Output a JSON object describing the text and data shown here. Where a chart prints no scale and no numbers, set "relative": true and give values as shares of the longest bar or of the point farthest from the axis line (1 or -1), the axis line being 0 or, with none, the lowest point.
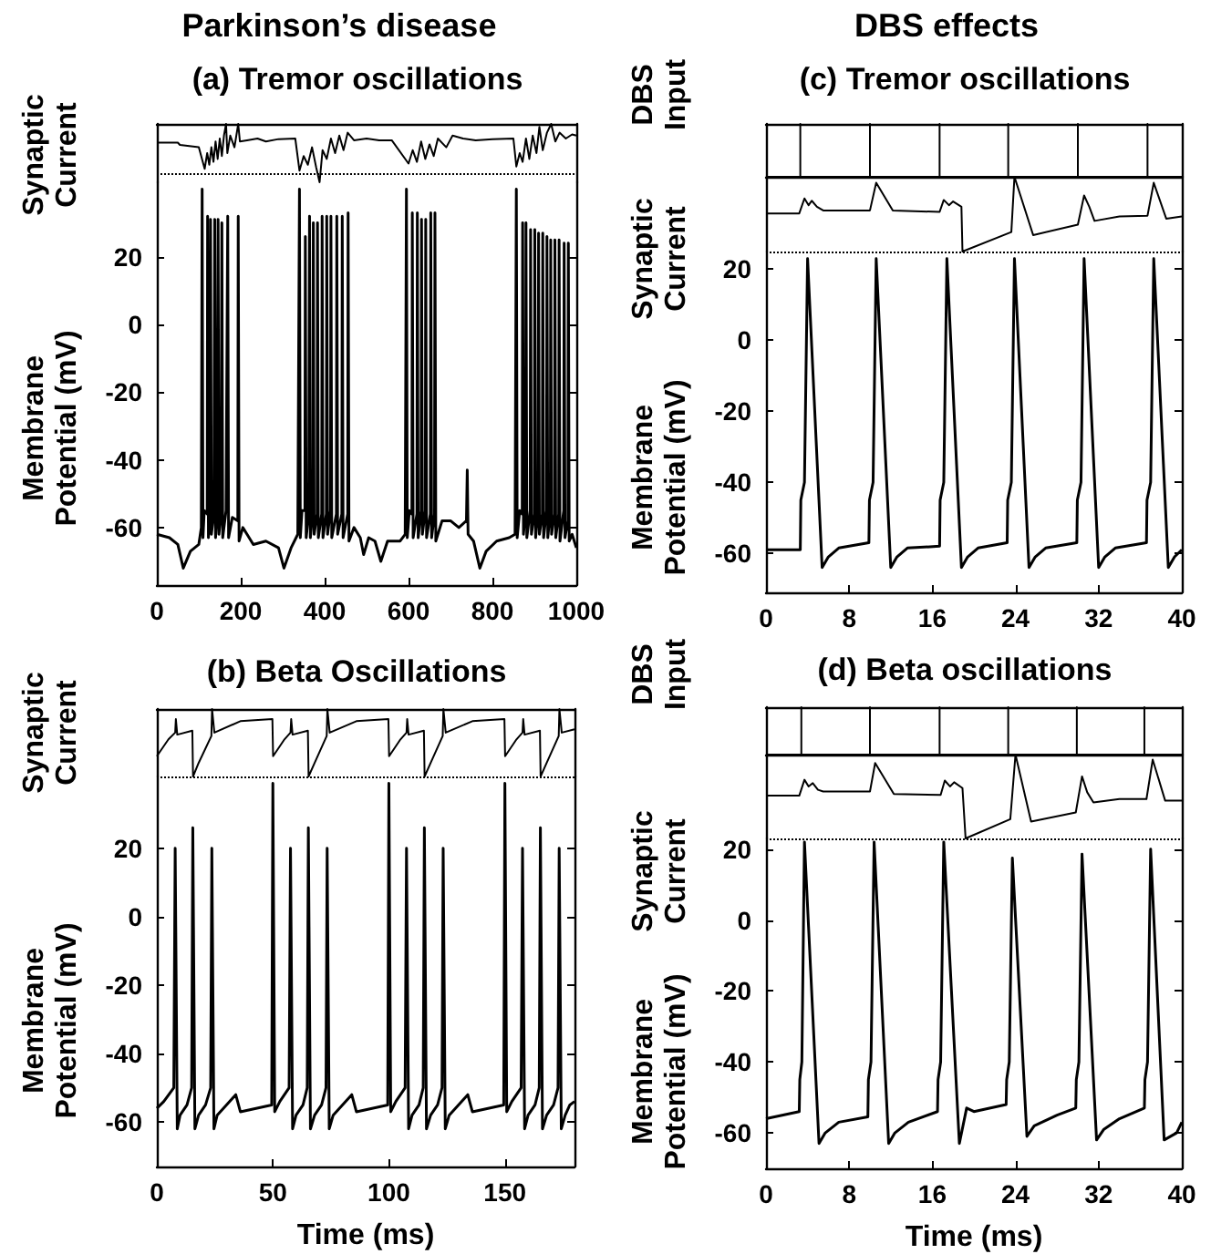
{
  "chart_data": [
    {
      "type": "line",
      "title": "Parkinson’s disease",
      "subtitle": "(a) Tremor oscillations",
      "ylabel": "Synaptic Current",
      "relative": true,
      "tick_labels": false,
      "xlim": [
        0,
        1000
      ],
      "color": "#000000",
      "ref_lines": [
        {
          "axis": "y",
          "value": 0.14,
          "line_style": "dotted",
          "color": "#000000"
        }
      ],
      "x": [
        0,
        50,
        55,
        100,
        114,
        120,
        125,
        130,
        135,
        140,
        145,
        150,
        155,
        160,
        165,
        168,
        175,
        185,
        194,
        198,
        215,
        240,
        260,
        290,
        330,
        340,
        350,
        360,
        370,
        380,
        388,
        395,
        405,
        415,
        425,
        435,
        445,
        455,
        470,
        500,
        530,
        560,
        600,
        610,
        620,
        630,
        640,
        650,
        660,
        670,
        690,
        705,
        730,
        760,
        800,
        850,
        857,
        865,
        872,
        880,
        888,
        896,
        905,
        912,
        920,
        930,
        940,
        950,
        960,
        975,
        990,
        1000
      ],
      "values": [
        0.68,
        0.68,
        0.64,
        0.6,
        0.23,
        0.5,
        0.3,
        0.6,
        0.35,
        0.7,
        0.4,
        0.75,
        0.45,
        0.8,
        1.0,
        0.5,
        0.8,
        0.6,
        1.0,
        0.7,
        0.72,
        0.75,
        0.7,
        0.74,
        0.75,
        0.2,
        0.45,
        0.3,
        0.6,
        0.25,
        0,
        0.55,
        0.4,
        0.75,
        0.5,
        0.8,
        0.55,
        0.85,
        0.72,
        0.75,
        0.72,
        0.72,
        0.32,
        0.55,
        0.35,
        0.7,
        0.4,
        0.65,
        0.45,
        0.75,
        0.6,
        0.8,
        0.75,
        0.72,
        0.74,
        0.75,
        0.27,
        0.5,
        0.35,
        0.75,
        0.4,
        0.8,
        0.5,
        0.95,
        0.55,
        0.85,
        1.0,
        0.7,
        0.85,
        0.75,
        0.82,
        0.8
      ]
    },
    {
      "type": "line",
      "ylabel": "Membrane Potential (mV)",
      "xlim": [
        0,
        1000
      ],
      "xticks": [
        0,
        200,
        400,
        600,
        800,
        1000
      ],
      "ylim": [
        -77,
        42
      ],
      "yticks": [
        -60,
        -40,
        -20,
        0,
        20
      ],
      "color": "#000000",
      "x": [
        0,
        30,
        50,
        63,
        80,
        100,
        106,
        108,
        110,
        113,
        120,
        121,
        123,
        126,
        128,
        130,
        136,
        138,
        140,
        144,
        146,
        148,
        153,
        155,
        157,
        165,
        169,
        171,
        180,
        193,
        194,
        196,
        205,
        215,
        230,
        260,
        290,
        303,
        320,
        336,
        340,
        342,
        346,
        353,
        354,
        356,
        362,
        364,
        366,
        372,
        373,
        375,
        382,
        383,
        385,
        393,
        394,
        396,
        404,
        405,
        407,
        414,
        415,
        417,
        428,
        429,
        431,
        441,
        442,
        444,
        455,
        456,
        458,
        470,
        485,
        493,
        505,
        520,
        534,
        550,
        580,
        592,
        595,
        597,
        602,
        608,
        609,
        611,
        620,
        621,
        623,
        630,
        631,
        633,
        640,
        641,
        643,
        652,
        653,
        655,
        662,
        663,
        665,
        680,
        700,
        720,
        738,
        740,
        742,
        755,
        770,
        785,
        810,
        840,
        854,
        857,
        859,
        865,
        871,
        872,
        874,
        879,
        880,
        882,
        890,
        891,
        893,
        900,
        901,
        903,
        909,
        910,
        912,
        919,
        920,
        922,
        929,
        930,
        932,
        938,
        939,
        941,
        948,
        949,
        951,
        958,
        959,
        961,
        970,
        971,
        973,
        980,
        981,
        983,
        990,
        1000
      ],
      "values": [
        -62,
        -63,
        -65,
        -72,
        -67,
        -65,
        -60,
        40,
        -63,
        -55,
        -56,
        32,
        -63,
        -56,
        31,
        -62,
        -56,
        31,
        -63,
        -55,
        31,
        -62,
        -56,
        30,
        -63,
        -55,
        32,
        -63,
        -57,
        -58,
        32,
        -64,
        -60,
        -62,
        -65,
        -64,
        -66,
        -72,
        -66,
        -62,
        40,
        -63,
        -55,
        -55,
        26,
        -63,
        -56,
        32,
        -63,
        -55,
        30,
        -62,
        -56,
        30,
        -63,
        -56,
        32,
        -63,
        -56,
        32,
        -62,
        -55,
        32,
        -63,
        -56,
        32,
        -62,
        -56,
        32,
        -63,
        -56,
        33,
        -64,
        -60,
        -63,
        -68,
        -63,
        -64,
        -70,
        -64,
        -64,
        -62,
        40,
        -63,
        -55,
        -56,
        33,
        -63,
        -56,
        33,
        -63,
        -55,
        31,
        -62,
        -55,
        31,
        -63,
        -56,
        33,
        -63,
        -56,
        33,
        -64,
        -58,
        -58,
        -60,
        -58,
        -43,
        -62,
        -64,
        -72,
        -67,
        -64,
        -63,
        -62,
        40,
        -63,
        -55,
        -56,
        30,
        -62,
        -55,
        30,
        -63,
        -55,
        28,
        -62,
        -56,
        28,
        -63,
        -55,
        27,
        -62,
        -56,
        27,
        -63,
        -55,
        26,
        -63,
        -55,
        25,
        -62,
        -56,
        25,
        -63,
        -56,
        25,
        -64,
        -55,
        24,
        -63,
        -58,
        24,
        -64,
        -62,
        -66
      ]
    },
    {
      "type": "line",
      "title": "(b) Beta Oscillations",
      "ylabel": "Synaptic Current",
      "relative": true,
      "tick_labels": false,
      "xlim": [
        0,
        180
      ],
      "color": "#000000",
      "ref_lines": [
        {
          "axis": "y",
          "value": 0,
          "line_style": "dotted",
          "color": "#000000"
        }
      ],
      "x": [
        0,
        5,
        7.9,
        8.2,
        8.8,
        15.3,
        15.6,
        18,
        23.5,
        23.8,
        24.8,
        36,
        49.8,
        50.1,
        55,
        57.6,
        57.9,
        58.5,
        65.1,
        65.4,
        68,
        73.2,
        73.5,
        74.5,
        86,
        99.8,
        100.1,
        105,
        107.6,
        107.9,
        108.5,
        115.1,
        115.4,
        118,
        123.2,
        123.5,
        124.5,
        136,
        149.8,
        150.1,
        155,
        157.6,
        157.9,
        158.5,
        165.1,
        165.4,
        168,
        173.2,
        173.5,
        174.5,
        180
      ],
      "values": [
        0.3,
        0.55,
        0.65,
        0.85,
        0.62,
        0.68,
        0,
        0.2,
        0.6,
        1,
        0.65,
        0.82,
        0.85,
        0.3,
        0.55,
        0.65,
        0.85,
        0.62,
        0.68,
        0,
        0.2,
        0.6,
        1,
        0.65,
        0.82,
        0.85,
        0.3,
        0.55,
        0.65,
        0.85,
        0.62,
        0.68,
        0,
        0.2,
        0.6,
        1,
        0.65,
        0.82,
        0.85,
        0.3,
        0.55,
        0.65,
        0.85,
        0.62,
        0.68,
        0,
        0.2,
        0.6,
        1,
        0.65,
        0.7
      ]
    },
    {
      "type": "line",
      "xlabel": "Time (ms)",
      "ylabel": "Membrane Potential (mV)",
      "xlim": [
        0,
        180
      ],
      "xticks": [
        0,
        50,
        100,
        150
      ],
      "ylim": [
        -73,
        41
      ],
      "yticks": [
        -60,
        -40,
        -20,
        0,
        20
      ],
      "color": "#000000",
      "x": [
        0,
        3,
        7.3,
        7.9,
        8.8,
        10,
        13,
        15,
        15.5,
        16.4,
        18,
        21,
        23.2,
        23.7,
        24.6,
        26,
        30,
        34,
        36,
        49.5,
        50,
        50.8,
        53,
        57,
        57.6,
        58.5,
        60,
        63,
        64.8,
        65.3,
        66.2,
        68,
        71,
        72.9,
        73.4,
        74.3,
        76,
        80,
        84,
        86,
        99.5,
        100,
        100.8,
        103,
        107,
        107.6,
        108.5,
        110,
        113,
        114.8,
        115.3,
        116.2,
        118,
        121,
        122.9,
        123.4,
        124.3,
        126,
        130,
        134,
        136,
        149.5,
        150,
        150.8,
        153,
        157,
        157.6,
        158.5,
        160,
        163,
        164.8,
        165.3,
        166.2,
        168,
        171,
        172.9,
        173.4,
        174.3,
        176,
        178,
        180
      ],
      "values": [
        -56,
        -54,
        -50,
        20,
        -62,
        -58,
        -55,
        -50,
        26,
        -62,
        -58,
        -55,
        -50,
        20,
        -62,
        -58,
        -55,
        -52,
        -57,
        -55,
        39,
        -57,
        -54,
        -50,
        20,
        -62,
        -58,
        -55,
        -50,
        26,
        -62,
        -58,
        -55,
        -50,
        20,
        -62,
        -58,
        -55,
        -52,
        -57,
        -55,
        39,
        -57,
        -54,
        -50,
        20,
        -62,
        -58,
        -55,
        -50,
        26,
        -62,
        -58,
        -55,
        -50,
        20,
        -62,
        -58,
        -55,
        -52,
        -57,
        -55,
        39,
        -57,
        -54,
        -50,
        20,
        -62,
        -58,
        -55,
        -50,
        26,
        -62,
        -58,
        -55,
        -50,
        20,
        -62,
        -58,
        -55,
        -54
      ]
    },
    {
      "type": "line",
      "title": "DBS effects",
      "subtitle": "(c) Tremor oscillations",
      "ylabel": "DBS Input",
      "relative": true,
      "tick_labels": false,
      "xlim": [
        0,
        40
      ],
      "color": "#000000",
      "x": [
        0,
        3.3,
        3.3,
        3.3,
        10,
        10,
        10,
        16.7,
        16.7,
        16.7,
        23.3,
        23.3,
        23.3,
        30,
        30,
        30,
        36.7,
        36.7,
        36.7,
        40
      ],
      "values": [
        0,
        0,
        1,
        0,
        0,
        1,
        0,
        0,
        1,
        0,
        0,
        1,
        0,
        0,
        1,
        0,
        0,
        1,
        0,
        0
      ]
    },
    {
      "type": "line",
      "ylabel": "Synaptic Current",
      "relative": true,
      "tick_labels": false,
      "xlim": [
        0,
        40
      ],
      "color": "#000000",
      "ref_lines": [
        {
          "axis": "y",
          "value": 0,
          "line_style": "dotted",
          "color": "#000000"
        }
      ],
      "x": [
        0,
        3.2,
        3.7,
        4.1,
        4.4,
        4.9,
        5.5,
        10,
        10.6,
        12.2,
        16.7,
        17.1,
        17.6,
        18,
        18.8,
        18.9,
        23.6,
        23.9,
        25.7,
        30,
        30.6,
        31.1,
        31.6,
        34,
        36.7,
        37.3,
        38.5,
        40
      ],
      "values": [
        0.51,
        0.51,
        0.71,
        0.62,
        0.68,
        0.6,
        0.55,
        0.55,
        0.92,
        0.55,
        0.53,
        0.69,
        0.62,
        0.67,
        0.6,
        0,
        0.26,
        1,
        0.22,
        0.36,
        0.75,
        0.6,
        0.41,
        0.47,
        0.48,
        0.92,
        0.44,
        0.47
      ]
    },
    {
      "type": "line",
      "ylabel": "Membrane Potential (mV)",
      "xlim": [
        0,
        40
      ],
      "xticks": [
        0,
        8,
        16,
        24,
        32,
        40
      ],
      "ylim": [
        -71,
        25
      ],
      "yticks": [
        -60,
        -40,
        -20,
        0,
        20
      ],
      "color": "#000000",
      "x": [
        0,
        3.3,
        3.35,
        3.7,
        4.0,
        5.4,
        6,
        7,
        9.9,
        9.95,
        10.3,
        10.6,
        12,
        12.6,
        13.6,
        16.7,
        16.75,
        17.1,
        17.4,
        18.8,
        19.4,
        20.4,
        23.2,
        23.25,
        23.6,
        23.9,
        25.3,
        25.9,
        26.9,
        29.9,
        29.95,
        30.3,
        30.6,
        32,
        32.6,
        33.6,
        36.6,
        36.65,
        37,
        37.3,
        38.7,
        39.3,
        40
      ],
      "values": [
        -59,
        -59,
        -45,
        -40,
        23,
        -64,
        -61,
        -58.5,
        -57,
        -45,
        -40,
        23,
        -64,
        -61,
        -58.5,
        -58,
        -45,
        -40,
        23,
        -64,
        -61,
        -58.5,
        -57,
        -45,
        -40,
        23,
        -64,
        -61,
        -58.5,
        -57,
        -45,
        -40,
        23,
        -64,
        -61,
        -58.5,
        -57,
        -45,
        -40,
        23,
        -64,
        -61,
        -59
      ]
    },
    {
      "type": "line",
      "title": "(d) Beta oscillations",
      "ylabel": "DBS Input",
      "relative": true,
      "tick_labels": false,
      "xlim": [
        0,
        40
      ],
      "color": "#000000",
      "x": [
        0,
        3.4,
        3.4,
        3.4,
        10,
        10,
        10,
        16.7,
        16.7,
        16.7,
        23.3,
        23.3,
        23.3,
        29.9,
        29.9,
        29.9,
        36.4,
        36.4,
        36.4,
        40
      ],
      "values": [
        0,
        0,
        1,
        0,
        0,
        1,
        0,
        0,
        1,
        0,
        0,
        1,
        0,
        0,
        1,
        0,
        0,
        1,
        0,
        0
      ]
    },
    {
      "type": "line",
      "ylabel": "Synaptic Current",
      "relative": true,
      "tick_labels": false,
      "xlim": [
        0,
        40
      ],
      "color": "#000000",
      "ref_lines": [
        {
          "axis": "y",
          "value": 0,
          "line_style": "dotted",
          "color": "#000000"
        }
      ],
      "x": [
        0,
        3.2,
        3.7,
        4.1,
        4.5,
        5,
        5.5,
        10,
        10.5,
        12.3,
        16.8,
        17.2,
        17.7,
        18.1,
        18.9,
        19.2,
        23.5,
        24,
        25.5,
        29.8,
        30.4,
        30.9,
        31.5,
        34,
        36.6,
        37.2,
        38.4,
        40
      ],
      "values": [
        0.51,
        0.51,
        0.7,
        0.62,
        0.66,
        0.58,
        0.56,
        0.56,
        0.9,
        0.53,
        0.52,
        0.69,
        0.62,
        0.67,
        0.6,
        0,
        0.23,
        1,
        0.2,
        0.31,
        0.74,
        0.55,
        0.43,
        0.47,
        0.47,
        0.94,
        0.45,
        0.45
      ]
    },
    {
      "type": "line",
      "xlabel": "Time (ms)",
      "ylabel": "Membrane Potential (mV)",
      "xlim": [
        0,
        40
      ],
      "xticks": [
        0,
        8,
        16,
        24,
        32,
        40
      ],
      "ylim": [
        -70,
        23
      ],
      "yticks": [
        -60,
        -40,
        -20,
        0,
        20
      ],
      "color": "#000000",
      "x": [
        0,
        3.2,
        3.25,
        3.45,
        3.7,
        5.1,
        5.7,
        7,
        9.8,
        9.85,
        10.1,
        10.4,
        11.8,
        12.4,
        13.7,
        16.5,
        16.55,
        16.8,
        17.1,
        18.6,
        19.3,
        20,
        23.1,
        23.15,
        23.4,
        23.7,
        25.1,
        25.8,
        28,
        29.8,
        29.85,
        30.1,
        30.4,
        31.8,
        32.5,
        34,
        36.4,
        36.45,
        36.7,
        37,
        38.3,
        39.5,
        40
      ],
      "values": [
        -56,
        -54,
        -45,
        -40,
        22,
        -63,
        -60,
        -57,
        -55.5,
        -45,
        -40,
        22,
        -63,
        -60,
        -57,
        -54,
        -45,
        -40,
        22,
        -63,
        -53,
        -54,
        -52,
        -45,
        -40,
        17.5,
        -61,
        -58,
        -55,
        -53,
        -45,
        -40,
        18.6,
        -62,
        -59,
        -56,
        -53,
        -45,
        -40,
        20,
        -62,
        -60,
        -57
      ]
    }
  ]
}
